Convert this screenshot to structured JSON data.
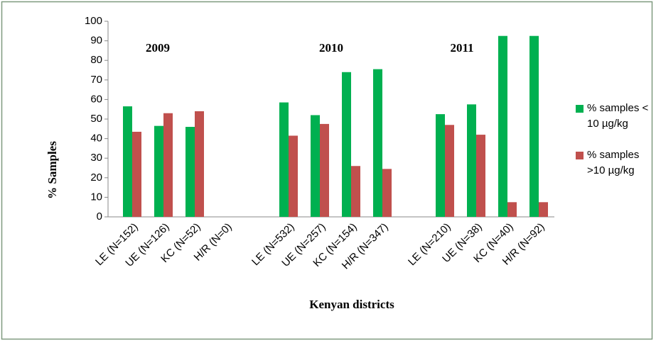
{
  "chart_data": {
    "type": "bar",
    "annotations": [
      "2009",
      "2010",
      "2011"
    ],
    "x_label": "Kenyan districts",
    "y_label": "% Samples",
    "categories": [
      "LE (N=152)",
      "UE (N=126)",
      "KC (N=52)",
      "H/R (N=0)",
      null,
      "LE (N=532)",
      "UE (N=257)",
      "KC (N=154)",
      "H/R (N=347)",
      null,
      "LE (N=210)",
      "UE (N=38)",
      "KC (N=40)",
      "H/R (N=92)"
    ],
    "series": [
      {
        "name": "% samples < 10 µg/kg",
        "color": "#00b050",
        "values": [
          56.5,
          46.5,
          46,
          null,
          null,
          58.5,
          52,
          74,
          75.5,
          null,
          52.5,
          57.5,
          92.5,
          92.5
        ]
      },
      {
        "name": "% samples >10 µg/kg",
        "color": "#c0504d",
        "values": [
          43.5,
          53,
          54,
          null,
          null,
          41.5,
          47.5,
          26,
          24.5,
          null,
          47,
          42,
          7.5,
          7.5
        ]
      }
    ],
    "ylim": [
      0,
      100
    ],
    "yticks": [
      0,
      10,
      20,
      30,
      40,
      50,
      60,
      70,
      80,
      90,
      100
    ],
    "grid": false
  }
}
